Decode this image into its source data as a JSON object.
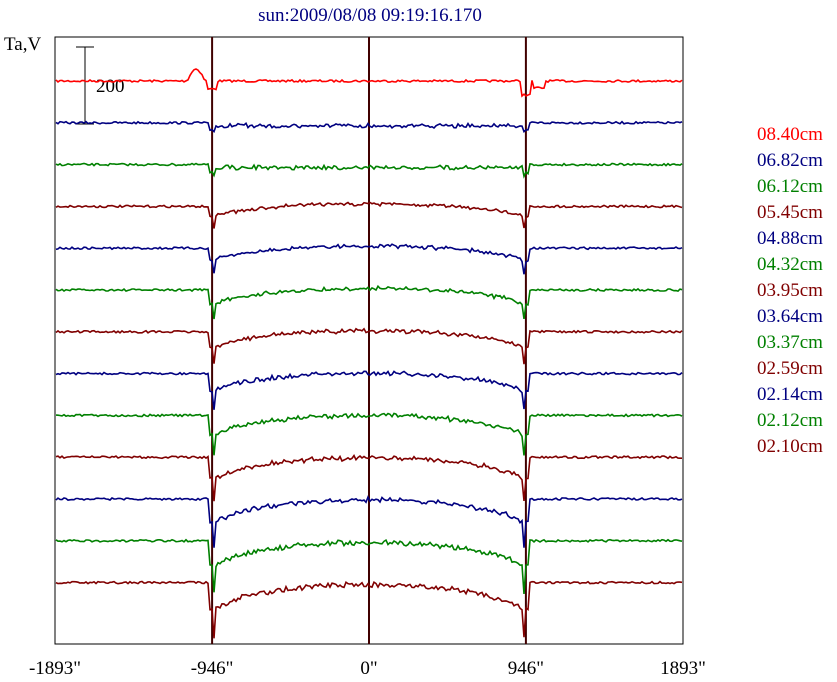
{
  "chart_data": {
    "type": "line",
    "title": "sun:2009/08/08 09:19:16.170",
    "ylabel": "Ta,V",
    "scale_bar_label": "200",
    "x_ticks": [
      "-1893\"",
      "-946\"",
      "0\"",
      "946\"",
      "1893\""
    ],
    "x_tick_values": [
      -1893,
      -946,
      0,
      946,
      1893
    ],
    "xlim": [
      -1893,
      1893
    ],
    "vertical_markers": [
      -946,
      0,
      946
    ],
    "series": [
      {
        "name": "08.40cm",
        "color": "#ff0000",
        "kind": "edge"
      },
      {
        "name": "06.82cm",
        "color": "#000080",
        "kind": "flat"
      },
      {
        "name": "06.12cm",
        "color": "#008000",
        "kind": "flat"
      },
      {
        "name": "05.45cm",
        "color": "#800000",
        "kind": "hump"
      },
      {
        "name": "04.88cm",
        "color": "#000080",
        "kind": "hump"
      },
      {
        "name": "04.32cm",
        "color": "#008000",
        "kind": "hump"
      },
      {
        "name": "03.95cm",
        "color": "#800000",
        "kind": "hump"
      },
      {
        "name": "03.64cm",
        "color": "#000080",
        "kind": "hump"
      },
      {
        "name": "03.37cm",
        "color": "#008000",
        "kind": "hump"
      },
      {
        "name": "02.59cm",
        "color": "#800000",
        "kind": "hump"
      },
      {
        "name": "02.14cm",
        "color": "#000080",
        "kind": "hump"
      },
      {
        "name": "02.12cm",
        "color": "#008000",
        "kind": "hump"
      },
      {
        "name": "02.10cm",
        "color": "#800000",
        "kind": "hump"
      }
    ]
  }
}
